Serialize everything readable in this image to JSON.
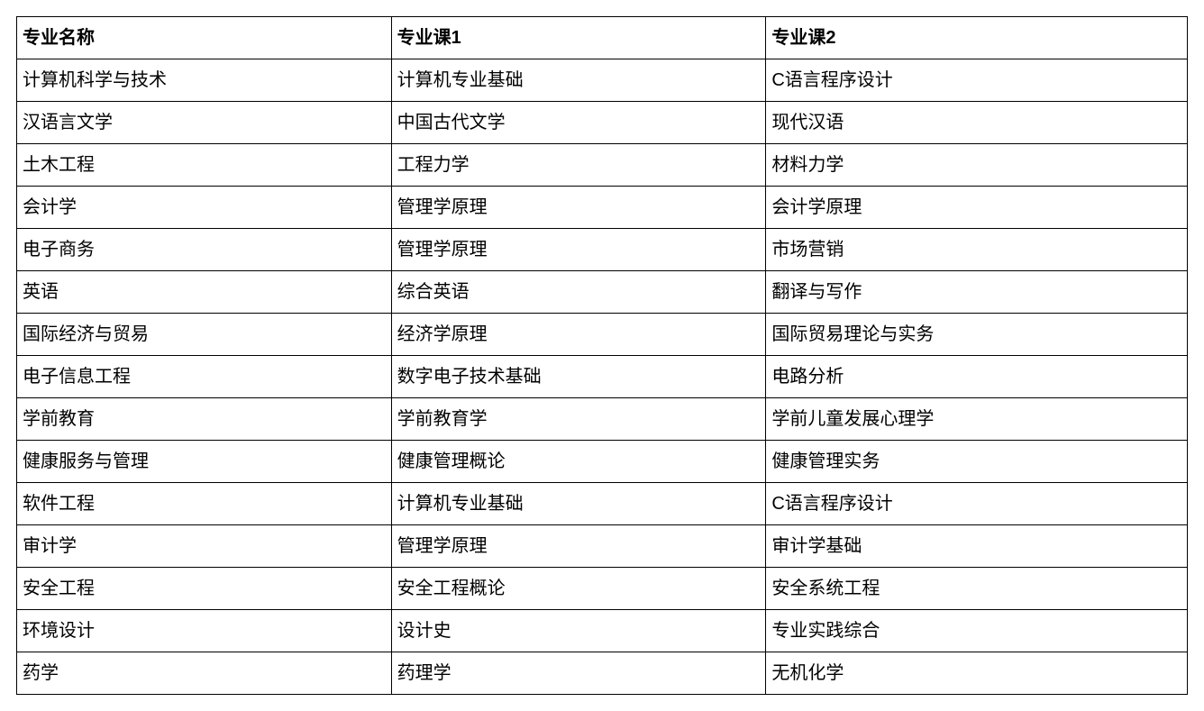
{
  "table": {
    "type": "table",
    "border_color": "#000000",
    "background_color": "#ffffff",
    "text_color": "#000000",
    "font_size_pt": 15,
    "header_font_weight": "bold",
    "columns": [
      {
        "label": "专业名称",
        "width_pct": 32
      },
      {
        "label": "专业课1",
        "width_pct": 32
      },
      {
        "label": "专业课2",
        "width_pct": 36
      }
    ],
    "rows": [
      [
        "计算机科学与技术",
        "计算机专业基础",
        "C语言程序设计"
      ],
      [
        "汉语言文学",
        "中国古代文学",
        "现代汉语"
      ],
      [
        "土木工程",
        "工程力学",
        "材料力学"
      ],
      [
        "会计学",
        "管理学原理",
        "会计学原理"
      ],
      [
        "电子商务",
        "管理学原理",
        "市场营销"
      ],
      [
        "英语",
        "综合英语",
        "翻译与写作"
      ],
      [
        "国际经济与贸易",
        "经济学原理",
        "国际贸易理论与实务"
      ],
      [
        "电子信息工程",
        "数字电子技术基础",
        "电路分析"
      ],
      [
        "学前教育",
        "学前教育学",
        "学前儿童发展心理学"
      ],
      [
        "健康服务与管理",
        "健康管理概论",
        "健康管理实务"
      ],
      [
        "软件工程",
        "计算机专业基础",
        "C语言程序设计"
      ],
      [
        "审计学",
        "管理学原理",
        "审计学基础"
      ],
      [
        "安全工程",
        "安全工程概论",
        "安全系统工程"
      ],
      [
        "环境设计",
        "设计史",
        "专业实践综合"
      ],
      [
        "药学",
        "药理学",
        "无机化学"
      ]
    ]
  }
}
